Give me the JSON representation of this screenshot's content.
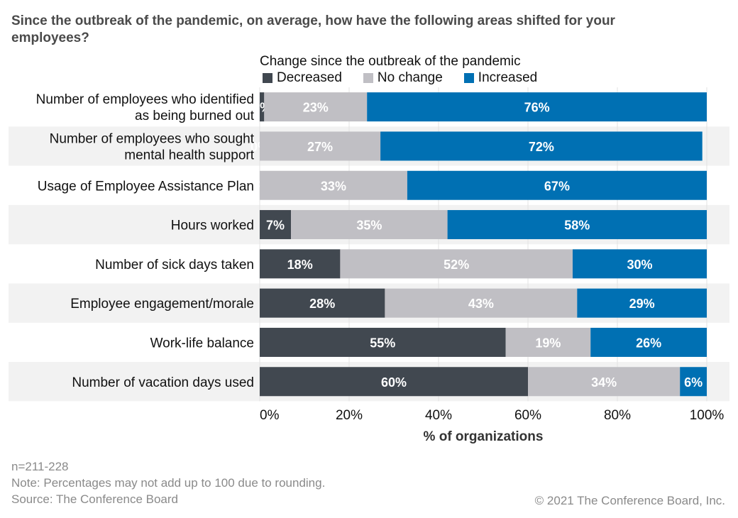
{
  "chart_data": {
    "type": "bar",
    "orientation": "horizontal",
    "stacked": true,
    "title": "Since the outbreak of the pandemic, on average, how have the following areas shifted for your employees?",
    "legend_title": "Change since the outbreak of the pandemic",
    "legend_position": "top",
    "xlabel": "% of organizations",
    "xlim": [
      0,
      100
    ],
    "xticks": [
      "0%",
      "20%",
      "40%",
      "60%",
      "80%",
      "100%"
    ],
    "categories": [
      "Number of employees who identified as being burned out",
      "Number of employees who sought mental health support",
      "Usage of Employee Assistance Plan",
      "Hours worked",
      "Number of sick days taken",
      "Employee engagement/morale",
      "Work-life balance",
      "Number of vacation days used"
    ],
    "category_lines": [
      [
        "Number of employees who identified",
        "as being burned out"
      ],
      [
        "Number of employees who sought",
        "mental health support"
      ],
      [
        "Usage of Employee Assistance Plan"
      ],
      [
        "Hours worked"
      ],
      [
        "Number of sick days taken"
      ],
      [
        "Employee engagement/morale"
      ],
      [
        "Work-life balance"
      ],
      [
        "Number of vacation days used"
      ]
    ],
    "series": [
      {
        "name": "Decreased",
        "color": "#414850",
        "values": [
          1,
          0,
          0,
          7,
          18,
          28,
          55,
          60
        ]
      },
      {
        "name": "No change",
        "color": "#c0bfc4",
        "values": [
          23,
          27,
          33,
          35,
          52,
          43,
          19,
          34
        ]
      },
      {
        "name": "Increased",
        "color": "#0070b3",
        "values": [
          76,
          72,
          67,
          58,
          30,
          29,
          26,
          6
        ]
      }
    ],
    "row_band_color": "#f2f2f2",
    "grid": true
  },
  "notes": {
    "n": "n=211-228",
    "note": "Note: Percentages may not add up to 100 due to rounding.",
    "source": "Source: The Conference Board"
  },
  "copyright": "© 2021 The Conference Board, Inc."
}
